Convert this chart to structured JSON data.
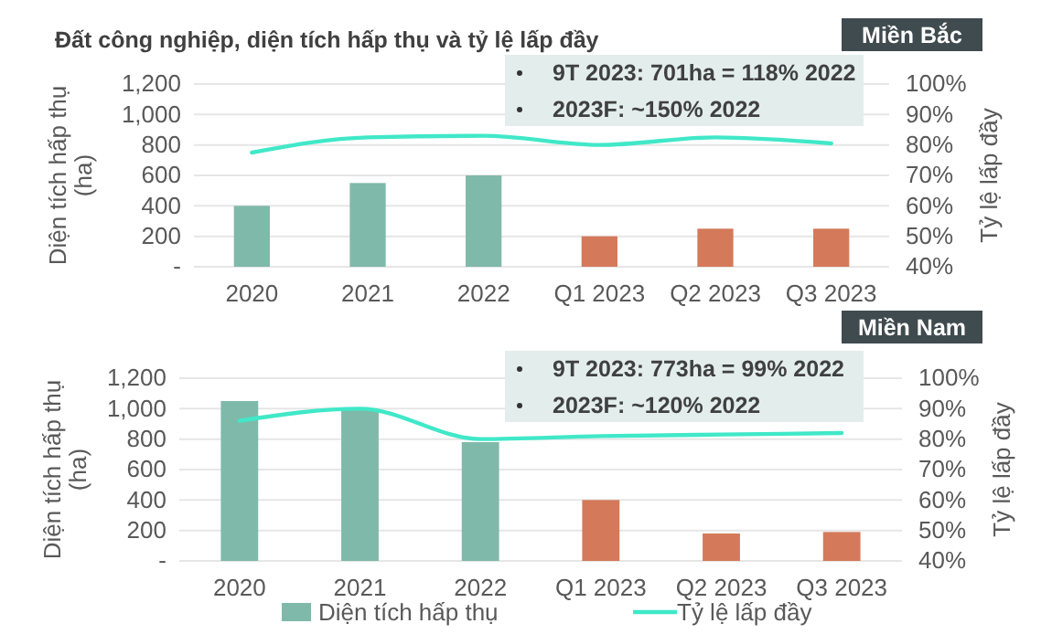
{
  "chart_data": [
    {
      "type": "bar",
      "title": "Đất công nghiệp, diện tích hấp thụ và tỷ lệ lấp đầy",
      "subtitle": "Miền Bắc",
      "ylabel": "Diện tích hấp thụ (ha)",
      "y2label": "Tỷ lệ lấp đầy",
      "annotations": [
        "9T 2023: 701ha = 118% 2022",
        "2023F: ~150% 2022"
      ],
      "categories": [
        "2020",
        "2021",
        "2022",
        "Q1 2023",
        "Q2 2023",
        "Q3 2023"
      ],
      "series": [
        {
          "colors": [
            "#7fb9a9",
            "#7fb9a9",
            "#7fb9a9",
            "#d4795a",
            "#d4795a",
            "#d4795a"
          ],
          "values": [
            400,
            550,
            600,
            200,
            250,
            250
          ]
        },
        {
          "type": "line",
          "axis": "y2",
          "color": "#40e8c8",
          "values": [
            77.5,
            82.5,
            83,
            80,
            82.5,
            80.5
          ]
        }
      ],
      "ylim": [
        0,
        1200
      ],
      "yticks": [
        {
          "value": 0,
          "label": "-"
        },
        200,
        400,
        600,
        800,
        {
          "value": 1000,
          "label": "1,000"
        },
        {
          "value": 1200,
          "label": "1,200"
        }
      ],
      "y2lim": [
        40,
        100
      ],
      "y2ticks": [
        {
          "value": 40,
          "label": "40%"
        },
        {
          "value": 50,
          "label": "50%"
        },
        {
          "value": 60,
          "label": "60%"
        },
        {
          "value": 70,
          "label": "70%"
        },
        {
          "value": 80,
          "label": "80%"
        },
        {
          "value": 90,
          "label": "90%"
        },
        {
          "value": 100,
          "label": "100%"
        }
      ],
      "grid": "y",
      "marker": "none",
      "line_style": "solid"
    },
    {
      "type": "bar",
      "subtitle": "Miền Nam",
      "ylabel": "Diện tích hấp thụ (ha)",
      "y2label": "Tỷ lệ lấp đầy",
      "annotations": [
        "9T 2023: 773ha = 99% 2022",
        "2023F: ~120% 2022"
      ],
      "categories": [
        "2020",
        "2021",
        "2022",
        "Q1 2023",
        "Q2 2023",
        "Q3 2023"
      ],
      "series": [
        {
          "name": "Diện tích hấp thụ",
          "color": "#7fb9a9",
          "colors": [
            "#7fb9a9",
            "#7fb9a9",
            "#7fb9a9",
            "#d4795a",
            "#d4795a",
            "#d4795a"
          ],
          "values": [
            1050,
            1000,
            780,
            400,
            180,
            190
          ]
        },
        {
          "type": "line",
          "axis": "y2",
          "name": "Tỷ lệ lấp đầy",
          "color": "#40e8c8",
          "values": [
            86,
            90,
            80,
            81,
            81.5,
            82
          ]
        }
      ],
      "ylim": [
        0,
        1200
      ],
      "yticks": [
        {
          "value": 0,
          "label": "-"
        },
        200,
        400,
        600,
        800,
        {
          "value": 1000,
          "label": "1,000"
        },
        {
          "value": 1200,
          "label": "1,200"
        }
      ],
      "y2lim": [
        40,
        100
      ],
      "y2ticks": [
        {
          "value": 40,
          "label": "40%"
        },
        {
          "value": 50,
          "label": "50%"
        },
        {
          "value": 60,
          "label": "60%"
        },
        {
          "value": 70,
          "label": "70%"
        },
        {
          "value": 80,
          "label": "80%"
        },
        {
          "value": 90,
          "label": "90%"
        },
        {
          "value": 100,
          "label": "100%"
        }
      ],
      "grid": "y",
      "legend": "bottom",
      "marker": "none",
      "line_style": "solid"
    }
  ]
}
